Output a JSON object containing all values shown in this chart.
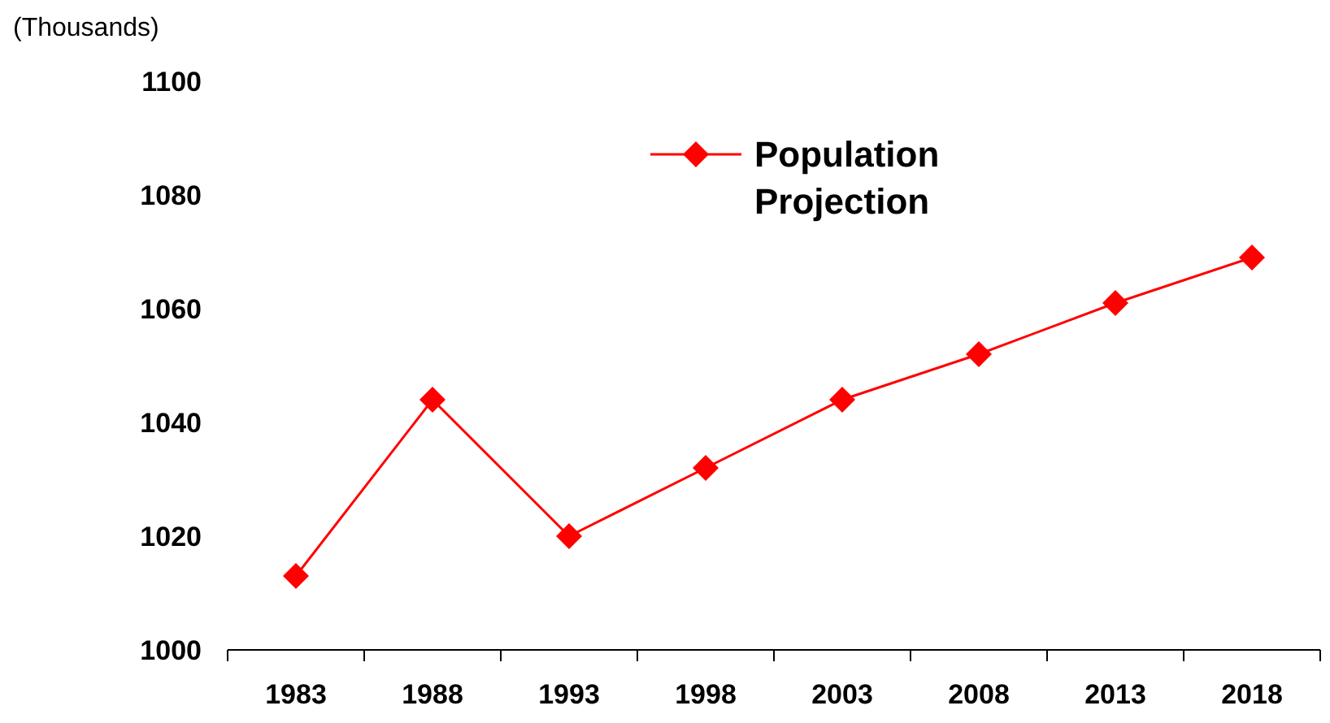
{
  "chart_data": {
    "type": "line",
    "ylabel": "(Thousands)",
    "categories": [
      "1983",
      "1988",
      "1993",
      "1998",
      "2003",
      "2008",
      "2013",
      "2018"
    ],
    "series": [
      {
        "name": "Population Projection",
        "color": "#ff0000",
        "values": [
          1013,
          1044,
          1020,
          1032,
          1044,
          1052,
          1061,
          1069
        ]
      }
    ],
    "ylim": [
      1000,
      1100
    ],
    "yticks": [
      1000,
      1020,
      1040,
      1060,
      1080,
      1100
    ],
    "grid": false,
    "legend": "top",
    "marker": "diamond",
    "line_style": "solid"
  }
}
